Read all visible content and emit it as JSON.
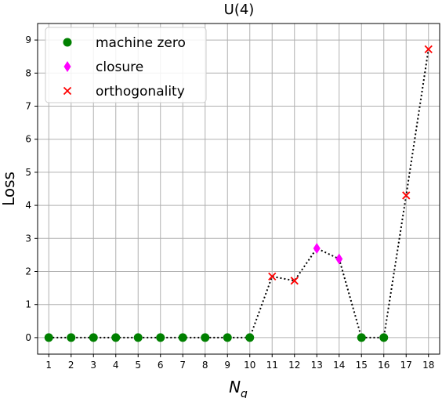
{
  "chart_data": {
    "type": "scatter",
    "title": "U(4)",
    "xlabel": "N",
    "xlabel_sub": "q",
    "ylabel": "Loss",
    "xlim": [
      0.5,
      18.5
    ],
    "ylim": [
      -0.5,
      9.5
    ],
    "xticks": [
      1,
      2,
      3,
      4,
      5,
      6,
      7,
      8,
      9,
      10,
      11,
      12,
      13,
      14,
      15,
      16,
      17,
      18
    ],
    "yticks": [
      0,
      1,
      2,
      3,
      4,
      5,
      6,
      7,
      8,
      9
    ],
    "grid": true,
    "legend_position": "top-left",
    "line": {
      "style": "dotted",
      "color": "#000000",
      "x": [
        1,
        2,
        3,
        4,
        5,
        6,
        7,
        8,
        9,
        10,
        11,
        12,
        13,
        14,
        15,
        16,
        17,
        18
      ],
      "y": [
        0,
        0,
        0,
        0,
        0,
        0,
        0,
        0,
        0,
        0,
        1.85,
        1.72,
        2.7,
        2.38,
        0,
        0,
        4.3,
        8.72
      ]
    },
    "series": [
      {
        "name": "machine zero",
        "marker": "circle",
        "color": "#008000",
        "x": [
          1,
          2,
          3,
          4,
          5,
          6,
          7,
          8,
          9,
          10,
          15,
          16
        ],
        "y": [
          0,
          0,
          0,
          0,
          0,
          0,
          0,
          0,
          0,
          0,
          0,
          0
        ]
      },
      {
        "name": "closure",
        "marker": "diamond",
        "color": "#ff00ff",
        "x": [
          13,
          14
        ],
        "y": [
          2.7,
          2.38
        ]
      },
      {
        "name": "orthogonality",
        "marker": "x",
        "color": "#ff0000",
        "x": [
          11,
          12,
          17,
          18
        ],
        "y": [
          1.85,
          1.72,
          4.3,
          8.72
        ]
      }
    ]
  }
}
